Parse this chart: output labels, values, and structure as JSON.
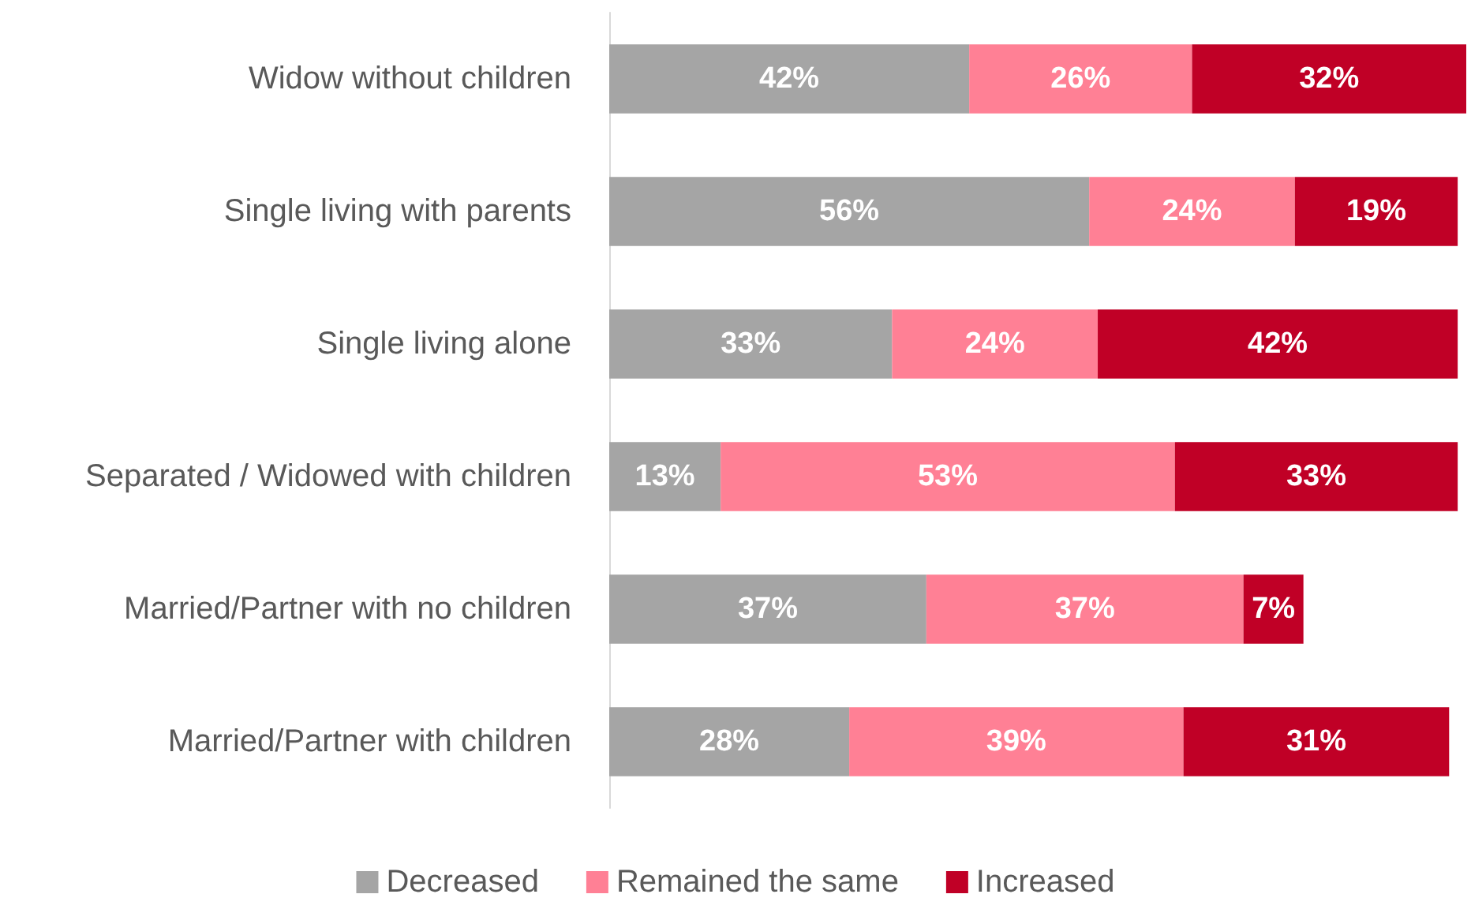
{
  "chart_data": {
    "type": "bar",
    "orientation": "horizontal",
    "stacked": true,
    "legend": "bottom",
    "grid": false,
    "categories": [
      "Widow without children",
      "Single living with parents",
      "Single living alone",
      "Separated / Widowed with children",
      "Married/Partner with no children",
      "Married/Partner with children"
    ],
    "series": [
      {
        "name": "Decreased",
        "color": "#a5a5a5",
        "values": [
          42,
          56,
          33,
          13,
          37,
          28
        ],
        "value_labels": [
          "42%",
          "56%",
          "33%",
          "13%",
          "37%",
          "28%"
        ]
      },
      {
        "name": "Remained the same",
        "color": "#ff8095",
        "values": [
          26,
          24,
          24,
          53,
          37,
          39
        ],
        "value_labels": [
          "26%",
          "24%",
          "24%",
          "53%",
          "37%",
          "39%"
        ]
      },
      {
        "name": "Increased",
        "color": "#c00026",
        "values": [
          32,
          19,
          42,
          33,
          7,
          31
        ],
        "value_labels": [
          "32%",
          "19%",
          "42%",
          "33%",
          "7%",
          "31%"
        ]
      }
    ]
  }
}
